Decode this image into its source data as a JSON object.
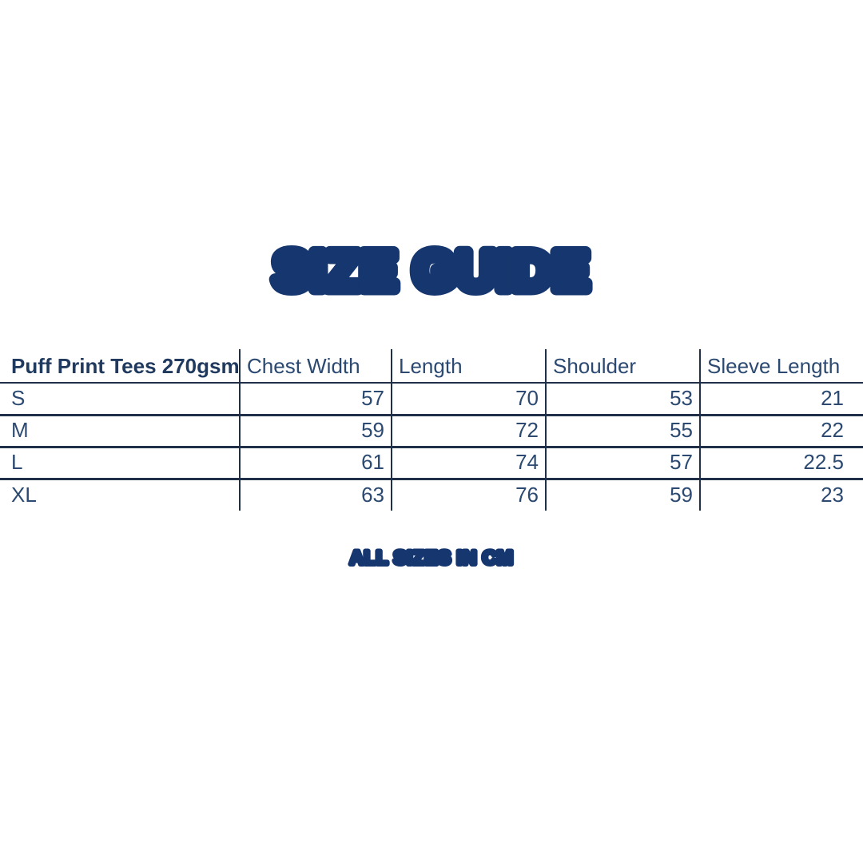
{
  "colors": {
    "background": "#ffffff",
    "accent_navy": "#16366f",
    "table_text": "#2b4971",
    "header_text": "#1f3a5e",
    "line": "#1f3048"
  },
  "title": {
    "text": "SIZE GUIDE"
  },
  "footnote": {
    "text": "ALL SIZES IN CM"
  },
  "table": {
    "product_label": "Puff Print Tees 270gsm",
    "columns": [
      "Chest Width",
      "Length",
      "Shoulder",
      "Sleeve Length"
    ],
    "rows": [
      {
        "size": "S",
        "chest_width": "57",
        "length": "70",
        "shoulder": "53",
        "sleeve_length": "21"
      },
      {
        "size": "M",
        "chest_width": "59",
        "length": "72",
        "shoulder": "55",
        "sleeve_length": "22"
      },
      {
        "size": "L",
        "chest_width": "61",
        "length": "74",
        "shoulder": "57",
        "sleeve_length": "22.5"
      },
      {
        "size": "XL",
        "chest_width": "63",
        "length": "76",
        "shoulder": "59",
        "sleeve_length": "23"
      }
    ]
  },
  "chart_data": {
    "type": "table",
    "title": "SIZE GUIDE",
    "columns": [
      "Puff Print Tees 270gsm",
      "Chest Width",
      "Length",
      "Shoulder",
      "Sleeve Length"
    ],
    "rows": [
      [
        "S",
        57,
        70,
        53,
        21
      ],
      [
        "M",
        59,
        72,
        55,
        22
      ],
      [
        "L",
        61,
        74,
        57,
        22.5
      ],
      [
        "XL",
        63,
        76,
        59,
        23
      ]
    ],
    "units": "cm",
    "footnote": "ALL SIZES IN CM"
  }
}
